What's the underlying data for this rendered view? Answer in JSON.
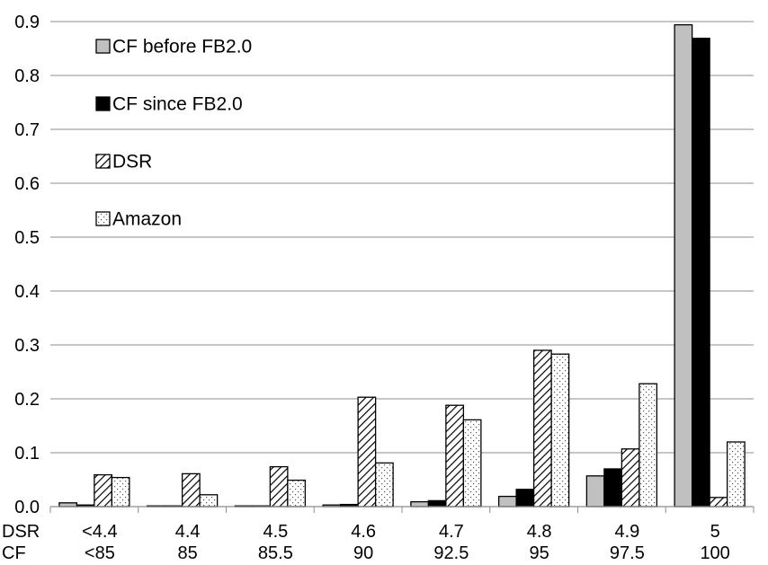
{
  "chart_data": {
    "type": "bar",
    "categories_dsr": [
      "<4.4",
      "4.4",
      "4.5",
      "4.6",
      "4.7",
      "4.8",
      "4.9",
      "5"
    ],
    "categories_cf": [
      "<85",
      "85",
      "85.5",
      "90",
      "92.5",
      "95",
      "97.5",
      "100"
    ],
    "category_row_labels": [
      "DSR",
      "CF"
    ],
    "series": [
      {
        "name": "CF before FB2.0",
        "fill": "#c0c0c0",
        "values": [
          0.007,
          0.001,
          0.001,
          0.003,
          0.009,
          0.019,
          0.057,
          0.894
        ]
      },
      {
        "name": "CF since FB2.0",
        "fill": "#000000",
        "values": [
          0.003,
          0.001,
          0.001,
          0.004,
          0.011,
          0.032,
          0.07,
          0.869
        ]
      },
      {
        "name": "DSR",
        "fill": "hatch",
        "values": [
          0.059,
          0.061,
          0.074,
          0.203,
          0.188,
          0.29,
          0.107,
          0.017
        ]
      },
      {
        "name": "Amazon",
        "fill": "dots",
        "values": [
          0.054,
          0.022,
          0.049,
          0.081,
          0.161,
          0.283,
          0.228,
          0.12
        ]
      }
    ],
    "yticks": [
      "0.0",
      "0.1",
      "0.2",
      "0.3",
      "0.4",
      "0.5",
      "0.6",
      "0.7",
      "0.8",
      "0.9"
    ],
    "ylim": [
      0,
      0.9
    ],
    "grid": true,
    "legend_position": "top-left"
  }
}
